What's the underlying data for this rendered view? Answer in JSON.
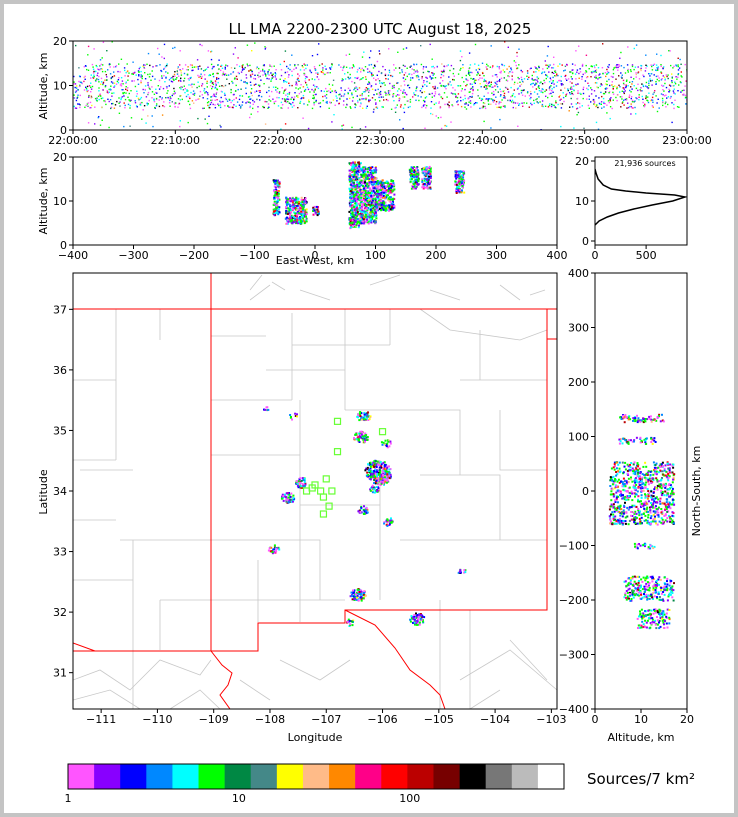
{
  "chart_data": [
    {
      "panel": "time-height",
      "type": "scatter",
      "title": "LL LMA 2200-2300 UTC August 18, 2025",
      "ylabel": "Altitude, km",
      "ylim": [
        0,
        20
      ],
      "yticks": [
        "0",
        "10",
        "20"
      ],
      "xticks": [
        "22:00:00",
        "22:10:00",
        "22:20:00",
        "22:30:00",
        "22:40:00",
        "22:50:00",
        "23:00:00"
      ],
      "description_band": {
        "altitude_main": [
          5,
          15
        ],
        "altitude_sparse": [
          0,
          20
        ]
      }
    },
    {
      "panel": "east-west-altitude",
      "type": "scatter",
      "xlabel": "East-West, km",
      "ylabel": "Altitude, km",
      "xlim": [
        -400,
        400
      ],
      "ylim": [
        0,
        20
      ],
      "xticks": [
        "−400",
        "−300",
        "−200",
        "−100",
        "0",
        "100",
        "200",
        "300",
        "400"
      ],
      "yticks": [
        "0",
        "10",
        "20"
      ],
      "clusters": [
        {
          "x": [
            -70,
            -60
          ],
          "z": [
            7,
            15
          ]
        },
        {
          "x": [
            -50,
            -15
          ],
          "z": [
            5,
            11
          ]
        },
        {
          "x": [
            -5,
            5
          ],
          "z": [
            7,
            9
          ]
        },
        {
          "x": [
            55,
            75
          ],
          "z": [
            4,
            19
          ]
        },
        {
          "x": [
            75,
            100
          ],
          "z": [
            5,
            18
          ]
        },
        {
          "x": [
            100,
            130
          ],
          "z": [
            8,
            15
          ]
        },
        {
          "x": [
            155,
            170
          ],
          "z": [
            13,
            18
          ]
        },
        {
          "x": [
            175,
            190
          ],
          "z": [
            13,
            18
          ]
        },
        {
          "x": [
            230,
            245
          ],
          "z": [
            12,
            17
          ]
        }
      ]
    },
    {
      "panel": "altitude-histogram",
      "type": "line",
      "annotation": "21,936 sources",
      "xticks": [
        "0",
        "500"
      ],
      "yticks": [
        "0",
        "10",
        "20"
      ],
      "xlim": [
        0,
        900
      ],
      "ylim": [
        -1,
        21
      ],
      "profile": [
        [
          0,
          4
        ],
        [
          40,
          5
        ],
        [
          120,
          6
        ],
        [
          230,
          7
        ],
        [
          380,
          8
        ],
        [
          560,
          9
        ],
        [
          760,
          10
        ],
        [
          880,
          11
        ],
        [
          780,
          11.5
        ],
        [
          500,
          12
        ],
        [
          300,
          12.5
        ],
        [
          160,
          13
        ],
        [
          80,
          14
        ],
        [
          30,
          15.5
        ],
        [
          10,
          17
        ],
        [
          0,
          18
        ]
      ]
    },
    {
      "panel": "plan-view",
      "type": "scatter",
      "xlabel": "Longitude",
      "ylabel": "Latitude",
      "xlim": [
        -111.5,
        -102.9
      ],
      "ylim": [
        30.4,
        37.6
      ],
      "xticks": [
        "−111",
        "−110",
        "−109",
        "−108",
        "−107",
        "−106",
        "−105",
        "−104",
        "−103"
      ],
      "yticks": [
        "31",
        "32",
        "33",
        "34",
        "35",
        "36",
        "37"
      ],
      "clusters": [
        {
          "lon": -106.1,
          "lat": 34.35,
          "n": 160
        },
        {
          "lon": -106.05,
          "lat": 34.25,
          "n": 120
        },
        {
          "lon": -106.4,
          "lat": 34.9,
          "n": 60
        },
        {
          "lon": -106.35,
          "lat": 35.25,
          "n": 50
        },
        {
          "lon": -107.7,
          "lat": 33.9,
          "n": 50
        },
        {
          "lon": -107.45,
          "lat": 34.15,
          "n": 45
        },
        {
          "lon": -106.35,
          "lat": 33.7,
          "n": 30
        },
        {
          "lon": -106.15,
          "lat": 34.05,
          "n": 25
        },
        {
          "lon": -105.9,
          "lat": 33.5,
          "n": 25
        },
        {
          "lon": -105.95,
          "lat": 34.8,
          "n": 20
        },
        {
          "lon": -107.95,
          "lat": 33.05,
          "n": 25
        },
        {
          "lon": -106.45,
          "lat": 32.3,
          "n": 70
        },
        {
          "lon": -105.4,
          "lat": 31.9,
          "n": 60
        },
        {
          "lon": -104.6,
          "lat": 32.7,
          "n": 10
        },
        {
          "lon": -106.6,
          "lat": 31.85,
          "n": 15
        },
        {
          "lon": -107.6,
          "lat": 35.25,
          "n": 8
        },
        {
          "lon": -108.05,
          "lat": 35.35,
          "n": 6
        }
      ],
      "stations": [
        [
          -106.8,
          35.15
        ],
        [
          -106.0,
          34.98
        ],
        [
          -106.8,
          34.65
        ],
        [
          -107.0,
          34.2
        ],
        [
          -107.2,
          34.1
        ],
        [
          -107.35,
          34.0
        ],
        [
          -107.1,
          34.0
        ],
        [
          -106.9,
          34.0
        ],
        [
          -107.05,
          33.9
        ],
        [
          -106.95,
          33.75
        ],
        [
          -107.05,
          33.62
        ],
        [
          -107.25,
          34.05
        ]
      ]
    },
    {
      "panel": "north-south-altitude",
      "type": "scatter",
      "xlabel": "Altitude, km",
      "ylabel": "North-South, km",
      "xlim": [
        0,
        20
      ],
      "ylim": [
        -400,
        400
      ],
      "xticks": [
        "0",
        "10",
        "20"
      ],
      "yticks": [
        "−400",
        "−300",
        "−200",
        "−100",
        "0",
        "100",
        "200",
        "300",
        "400"
      ],
      "clusters": [
        {
          "y": [
            128,
            142
          ],
          "z": [
            5,
            15
          ]
        },
        {
          "y": [
            88,
            100
          ],
          "z": [
            5,
            13
          ]
        },
        {
          "y": [
            -60,
            55
          ],
          "z": [
            3,
            17
          ]
        },
        {
          "y": [
            -105,
            -95
          ],
          "z": [
            8,
            13
          ]
        },
        {
          "y": [
            -200,
            -155
          ],
          "z": [
            6,
            17
          ]
        },
        {
          "y": [
            -250,
            -215
          ],
          "z": [
            9,
            16
          ]
        }
      ]
    },
    {
      "panel": "colorbar",
      "type": "heatmap",
      "label": "Sources/7 km²",
      "ticks": [
        "1",
        "10",
        "100"
      ],
      "colors": [
        "#ff55ff",
        "#8800ff",
        "#0000ff",
        "#0088ff",
        "#00ffff",
        "#00ff00",
        "#008844",
        "#448888",
        "#ffff00",
        "#ffbb88",
        "#ff8800",
        "#ff0088",
        "#ff0000",
        "#bb0000",
        "#770000",
        "#000000",
        "#777777",
        "#bbbbbb",
        "#ffffff"
      ]
    }
  ]
}
